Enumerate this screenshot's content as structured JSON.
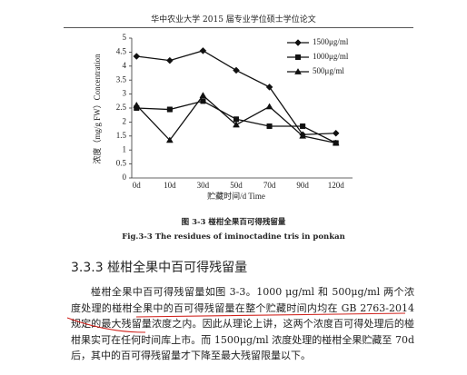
{
  "header": "华中农业大学 2015 届专业学位硕士学位论文",
  "chart_data": {
    "type": "line",
    "y_label": "浓度（mg/g FW）Concentration",
    "x_label": "贮藏时间/d Time",
    "categories": [
      "0d",
      "10d",
      "30d",
      "50d",
      "70d",
      "90d",
      "120d"
    ],
    "ylim": [
      0,
      5
    ],
    "yticks": [
      0,
      0.5,
      1,
      1.5,
      2,
      2.5,
      3,
      3.5,
      4,
      4.5,
      5
    ],
    "series": [
      {
        "name": "1500μg/ml",
        "color": "#111111",
        "marker": "diamond",
        "values": [
          4.35,
          4.2,
          4.55,
          3.85,
          3.25,
          1.55,
          1.6
        ]
      },
      {
        "name": "1000μg/ml",
        "color": "#111111",
        "marker": "square",
        "values": [
          2.5,
          2.45,
          2.75,
          2.1,
          1.85,
          1.85,
          1.25
        ]
      },
      {
        "name": "500μg/ml",
        "color": "#111111",
        "marker": "triangle",
        "values": [
          2.6,
          1.35,
          2.95,
          1.9,
          2.55,
          1.5,
          1.25
        ]
      }
    ]
  },
  "figure_caption_cn": "图 3-3  椪柑全果百可得残留量",
  "figure_caption_en": "Fig.3-3 The residues of iminoctadine tris in ponkan",
  "section_heading": "3.3.3  椪柑全果中百可得残留量",
  "paragraph": "椪柑全果中百可得残留量如图 3-3。1000 μg/ml 和 500μg/ml 两个浓度处理的椪柑全果中的百可得残留量在整个贮藏时间内均在 GB 2763-2014 规定的最大残留量浓度之内。因此从理论上讲，这两个浓度百可得处理后的椪柑果实可在任何时间库上市。而 1500μg/ml 浓度处理的椪柑全果贮藏至 70d 后，其中的百可得残留量才下降至最大残留限量以下。"
}
